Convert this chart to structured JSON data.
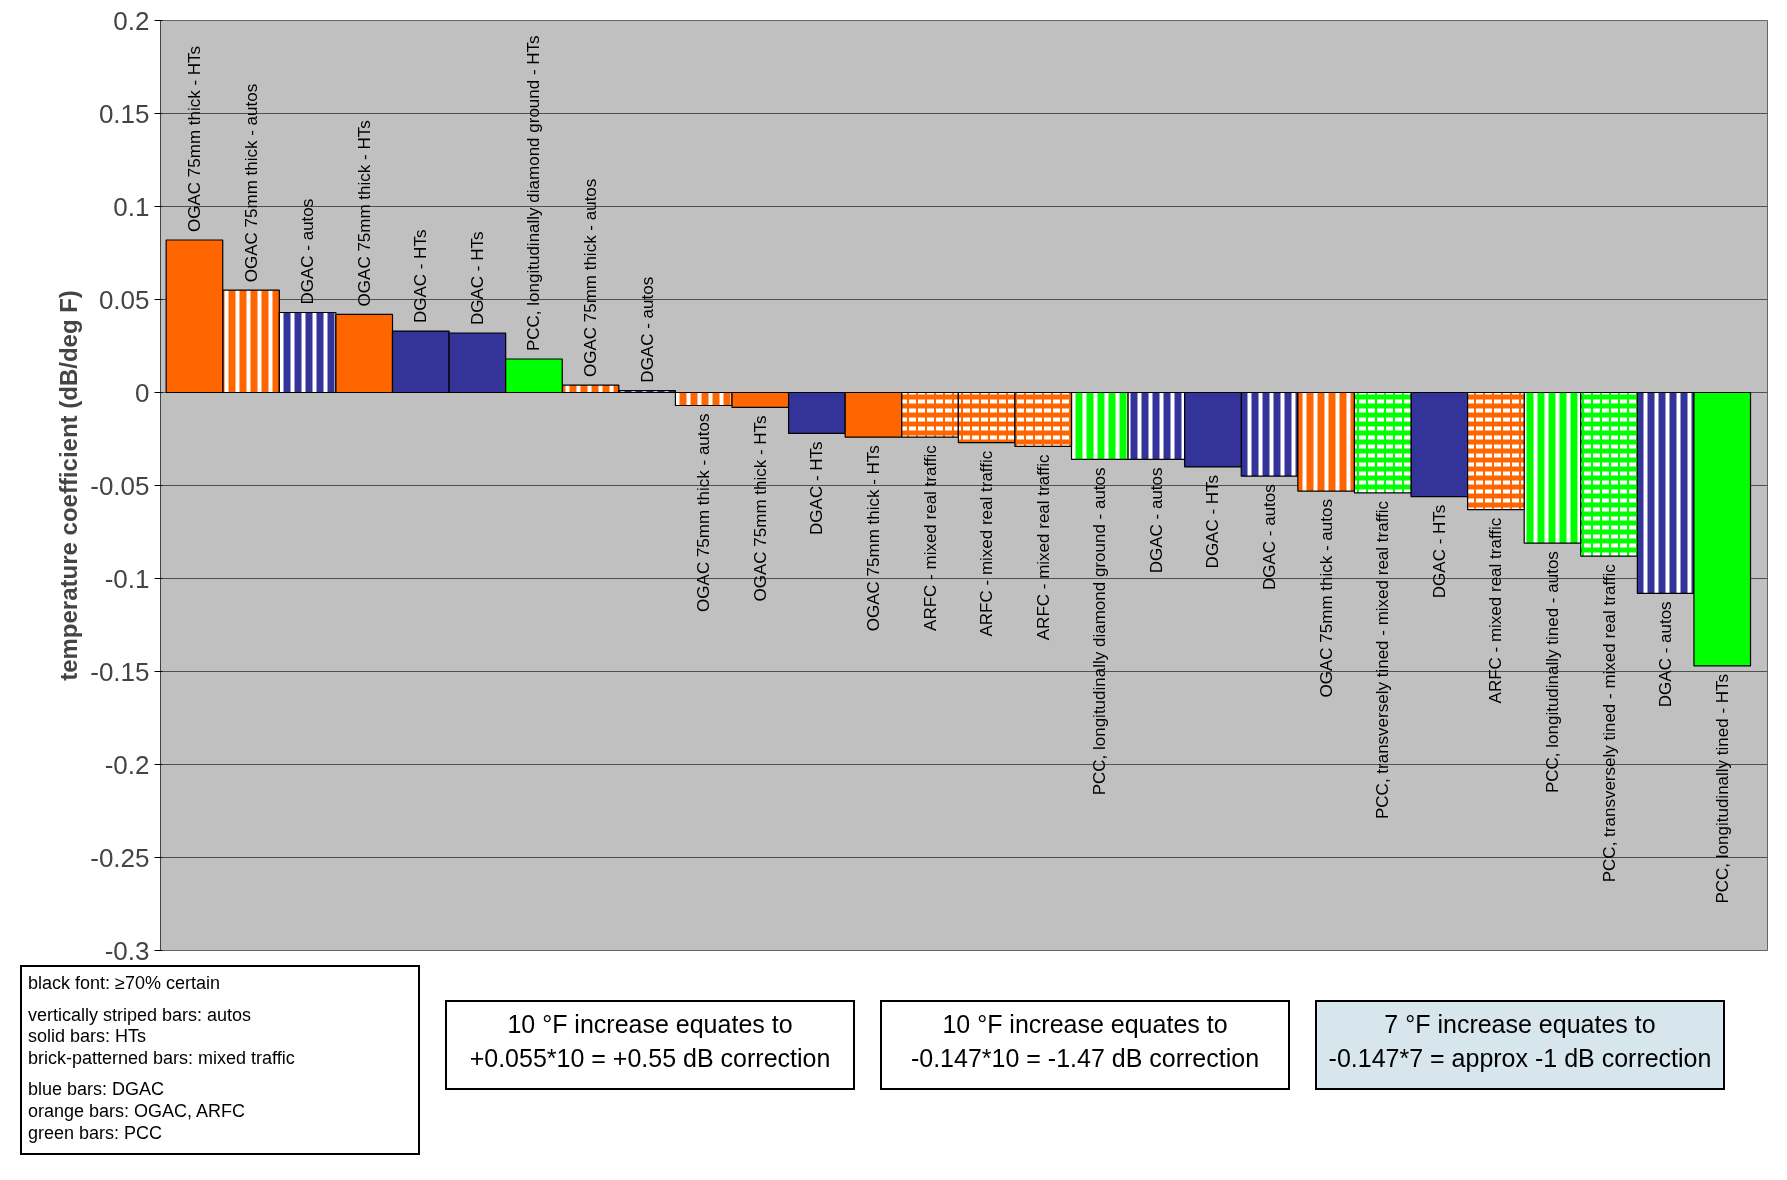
{
  "chart_data": {
    "type": "bar",
    "ylabel": "temperature coefficient (dB/deg F)",
    "categories": [
      "OGAC 75mm thick - HTs",
      "OGAC 75mm thick - autos",
      "DGAC - autos",
      "OGAC 75mm thick - HTs",
      "DGAC - HTs",
      "DGAC - HTs",
      "PCC, longitudinally diamond ground - HTs",
      "OGAC 75mm thick - autos",
      "DGAC - autos",
      "OGAC 75mm thick - autos",
      "OGAC 75mm thick - HTs",
      "DGAC - HTs",
      "OGAC 75mm thick - HTs",
      "ARFC - mixed real traffic",
      "ARFC - mixed real traffic",
      "ARFC - mixed real traffic",
      "PCC, longitudinally diamond ground - autos",
      "DGAC - autos",
      "DGAC - HTs",
      "DGAC - autos",
      "OGAC 75mm thick - autos",
      "PCC, transversely tined - mixed real traffic",
      "DGAC - HTs",
      "ARFC - mixed real traffic",
      "PCC, longitudinally tined - autos",
      "PCC, transversely tined - mixed real traffic",
      "DGAC - autos",
      "PCC, longitudinally tined - HTs"
    ],
    "series": [
      {
        "values": [
          null,
          0.055,
          0.043,
          null,
          null,
          null,
          null,
          0.004,
          0.001,
          -0.007,
          null,
          null,
          null,
          null,
          null,
          null,
          -0.036,
          -0.036,
          null,
          -0.045,
          -0.053,
          null,
          null,
          null,
          -0.081,
          null,
          -0.108,
          null
        ],
        "colors": [
          null,
          "#ff6600",
          "#333399",
          null,
          null,
          null,
          null,
          "#ff6600",
          "#333399",
          "#ff6600",
          null,
          null,
          null,
          null,
          null,
          null,
          "#00ff00",
          "#333399",
          null,
          "#333399",
          "#ff6600",
          null,
          null,
          null,
          "#00ff00",
          null,
          "#333399",
          null
        ]
      },
      {
        "values": [
          0.082,
          null,
          null,
          0.042,
          0.033,
          0.032,
          0.018,
          null,
          null,
          null,
          -0.008,
          -0.022,
          -0.024,
          null,
          null,
          null,
          null,
          null,
          -0.04,
          null,
          null,
          null,
          -0.056,
          null,
          null,
          null,
          null,
          -0.147
        ],
        "colors": [
          "#ff6600",
          null,
          null,
          "#ff6600",
          "#333399",
          "#333399",
          "#00ff00",
          null,
          null,
          null,
          "#ff6600",
          "#333399",
          "#ff6600",
          null,
          null,
          null,
          null,
          null,
          "#333399",
          null,
          null,
          null,
          "#333399",
          null,
          null,
          null,
          null,
          "#00ff00"
        ]
      },
      {
        "values": [
          null,
          null,
          null,
          null,
          null,
          null,
          null,
          null,
          null,
          null,
          null,
          null,
          null,
          -0.024,
          -0.027,
          -0.029,
          null,
          null,
          null,
          null,
          null,
          -0.054,
          null,
          -0.063,
          null,
          -0.088,
          null,
          null
        ],
        "colors": [
          null,
          null,
          null,
          null,
          null,
          null,
          null,
          null,
          null,
          null,
          null,
          null,
          null,
          "#ff6600",
          "#ff6600",
          "#ff6600",
          null,
          null,
          null,
          null,
          null,
          "#00ff00",
          null,
          "#ff6600",
          null,
          "#00ff00",
          null,
          null
        ]
      }
    ],
    "ylim": [
      -0.3,
      0.2
    ],
    "yticks": [
      -0.3,
      -0.25,
      -0.2,
      -0.15,
      -0.1,
      -0.05,
      0,
      0.05,
      0.1,
      0.15,
      0.2
    ],
    "grid": "y",
    "tick_labels": "y",
    "annotations": [
      "black font: ≥70% certain",
      "vertically striped bars: autos",
      "solid bars: HTs",
      "brick-patterned bars: mixed traffic",
      "blue bars: DGAC",
      "orange bars: OGAC, ARFC",
      "green bars: PCC",
      "10 °F increase equates to\n+0.055*10 = +0.55 dB correction",
      "10 °F increase equates to\n-0.147*10 = -1.47 dB correction",
      "7 °F increase equates to\n-0.147*7 = approx -1 dB correction"
    ]
  }
}
